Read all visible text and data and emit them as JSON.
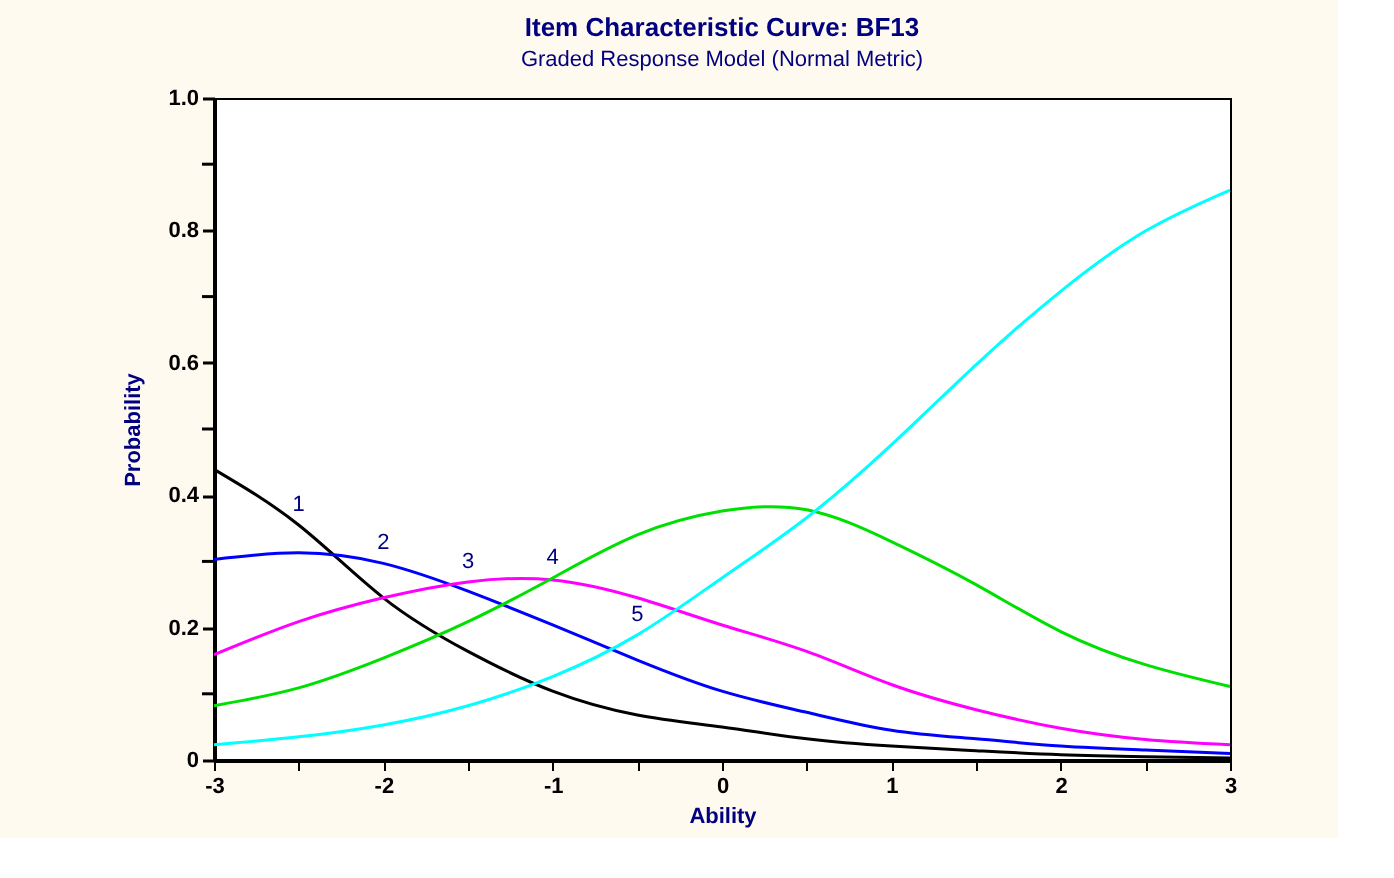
{
  "chart_data": {
    "type": "line",
    "title": "Item Characteristic Curve: BF13",
    "subtitle": "Graded Response Model (Normal Metric)",
    "xlabel": "Ability",
    "ylabel": "Probability",
    "x": [
      -3,
      -2.5,
      -2,
      -1.5,
      -1,
      -0.5,
      0,
      0.5,
      1,
      1.5,
      2,
      2.5,
      3
    ],
    "series": [
      {
        "name": "1",
        "color": "#000000",
        "values": [
          0.439,
          0.355,
          0.245,
          0.164,
          0.104,
          0.068,
          0.05,
          0.032,
          0.021,
          0.014,
          0.008,
          0.005,
          0.003
        ]
      },
      {
        "name": "2",
        "color": "#0000ff",
        "values": [
          0.303,
          0.313,
          0.297,
          0.255,
          0.204,
          0.151,
          0.104,
          0.072,
          0.045,
          0.032,
          0.021,
          0.015,
          0.01
        ]
      },
      {
        "name": "3",
        "color": "#ff00ff",
        "values": [
          0.159,
          0.209,
          0.245,
          0.269,
          0.272,
          0.245,
          0.204,
          0.164,
          0.114,
          0.076,
          0.048,
          0.031,
          0.023
        ]
      },
      {
        "name": "4",
        "color": "#00e000",
        "values": [
          0.082,
          0.109,
          0.154,
          0.209,
          0.275,
          0.34,
          0.376,
          0.378,
          0.33,
          0.265,
          0.194,
          0.144,
          0.111
        ]
      },
      {
        "name": "5",
        "color": "#00ffff",
        "values": [
          0.023,
          0.035,
          0.053,
          0.082,
          0.126,
          0.189,
          0.275,
          0.366,
          0.476,
          0.597,
          0.708,
          0.799,
          0.861
        ]
      }
    ],
    "xlim": [
      -3,
      3
    ],
    "ylim": [
      0,
      1
    ],
    "xticks": [
      -3,
      {
        "value": -2.5,
        "label": null
      },
      -2,
      {
        "value": -1.5,
        "label": null
      },
      -1,
      {
        "value": -0.5,
        "label": null
      },
      0,
      {
        "value": 0.5,
        "label": null
      },
      1,
      {
        "value": 1.5,
        "label": null
      },
      2,
      {
        "value": 2.5,
        "label": null
      },
      3
    ],
    "yticks": [
      0,
      {
        "value": 0.1,
        "label": null
      },
      0.2,
      {
        "value": 0.3,
        "label": null
      },
      0.4,
      {
        "value": 0.5,
        "label": null
      },
      0.6,
      {
        "value": 0.7,
        "label": null
      },
      0.8,
      {
        "value": 0.9,
        "label": null
      },
      {
        "value": 1,
        "label": "1.0"
      }
    ],
    "grid": false,
    "legend": false,
    "marker": "none",
    "line_style": "solid"
  }
}
